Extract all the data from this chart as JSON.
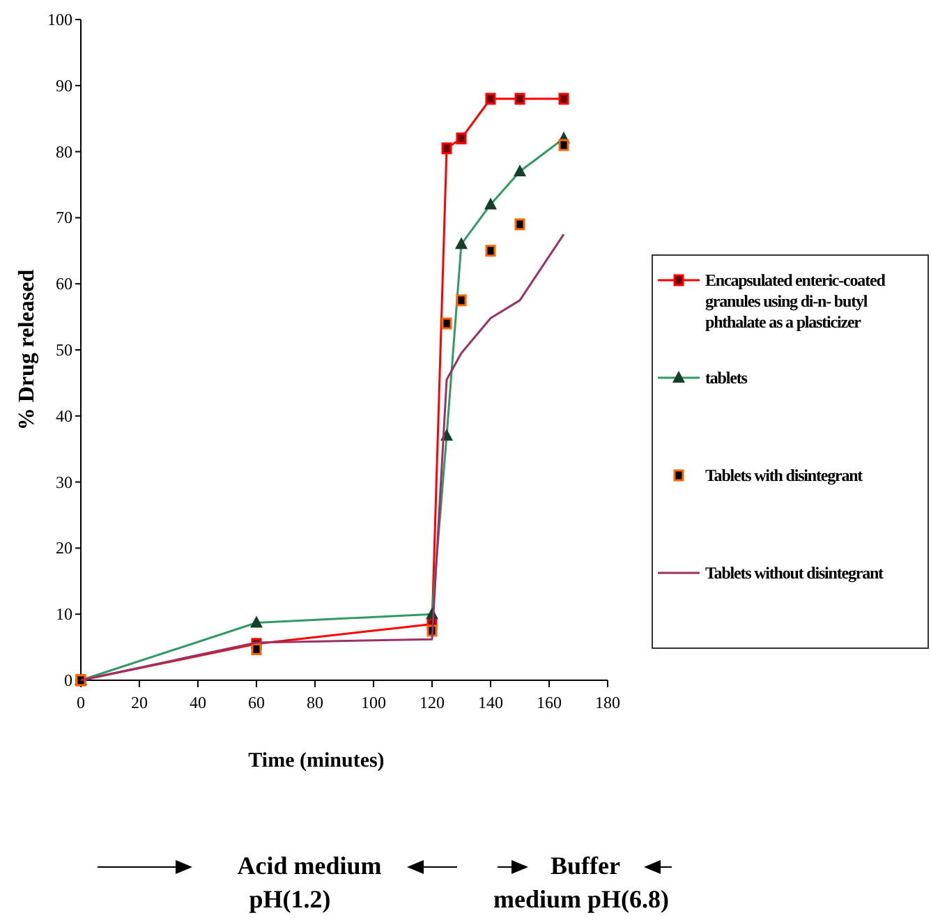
{
  "chart_data": {
    "type": "line",
    "xlabel": "Time (minutes)",
    "ylabel": "% Drug released",
    "x": [
      0,
      60,
      120,
      125,
      130,
      140,
      150,
      165
    ],
    "xlim": [
      0,
      180
    ],
    "xticks": [
      0,
      20,
      40,
      60,
      80,
      100,
      120,
      140,
      160,
      180
    ],
    "ylim": [
      0,
      100
    ],
    "yticks": [
      0,
      10,
      20,
      30,
      40,
      50,
      60,
      70,
      80,
      90,
      100
    ],
    "grid": false,
    "legend": "right",
    "line_style": "solid",
    "series": [
      {
        "name": "Encapsulated enteric-coated granules using di-n- butyl phthalate as a  plasticizer",
        "color": "#ff0000",
        "marker": "square",
        "values": [
          0,
          5.5,
          8.5,
          80.5,
          82,
          88,
          88,
          88
        ]
      },
      {
        "name": "tablets",
        "color": "#339966",
        "marker": "triangle",
        "values": [
          0,
          8.7,
          10,
          37,
          66,
          72,
          77,
          82
        ]
      },
      {
        "name": "Tablets with disintegrant",
        "type": "scatter",
        "color": "#ff6600",
        "marker": "square",
        "values": [
          0,
          4.7,
          7.5,
          54,
          57.5,
          65,
          69,
          81
        ]
      },
      {
        "name": "Tablets without disintegrant",
        "color": "#993366",
        "marker": "none",
        "values": [
          0,
          5.7,
          6.2,
          45.5,
          49.5,
          54.8,
          57.5,
          67.5
        ]
      }
    ],
    "annotations": [
      "Acid medium pH(1.2)",
      "Buffer medium pH(6.8)"
    ]
  }
}
